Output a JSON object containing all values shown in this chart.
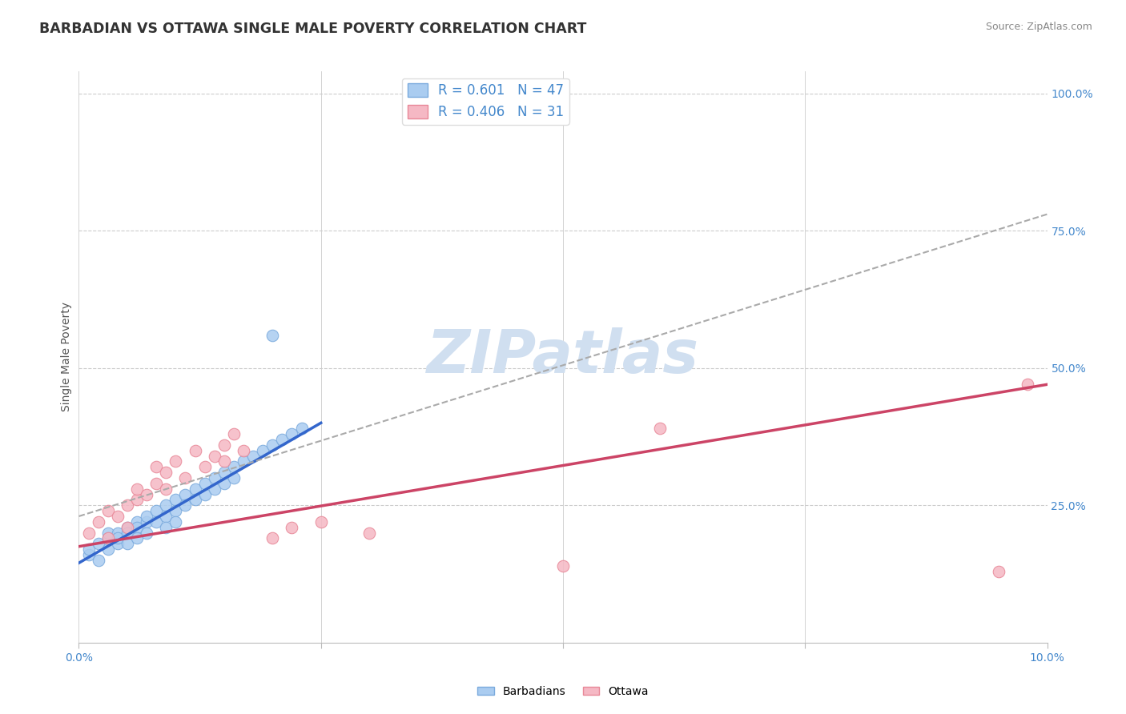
{
  "title": "BARBADIAN VS OTTAWA SINGLE MALE POVERTY CORRELATION CHART",
  "source": "Source: ZipAtlas.com",
  "ylabel": "Single Male Poverty",
  "legend_blue_r": "0.601",
  "legend_blue_n": "47",
  "legend_pink_r": "0.406",
  "legend_pink_n": "31",
  "legend_label_blue": "Barbadians",
  "legend_label_pink": "Ottawa",
  "background_color": "#ffffff",
  "blue_dot_fill": "#aaccf0",
  "blue_dot_edge": "#7aaadd",
  "pink_dot_fill": "#f5b8c4",
  "pink_dot_edge": "#e88898",
  "blue_line_color": "#3366cc",
  "pink_line_color": "#cc4466",
  "dash_line_color": "#aaaaaa",
  "axis_tick_color": "#4488cc",
  "title_color": "#333333",
  "source_color": "#888888",
  "ylabel_color": "#555555",
  "watermark_color": "#d0dff0",
  "grid_color": "#cccccc",
  "xlim": [
    0.0,
    0.1
  ],
  "ylim": [
    0.0,
    1.0
  ],
  "blue_points": [
    [
      0.001,
      0.16
    ],
    [
      0.001,
      0.17
    ],
    [
      0.002,
      0.15
    ],
    [
      0.002,
      0.18
    ],
    [
      0.003,
      0.17
    ],
    [
      0.003,
      0.19
    ],
    [
      0.003,
      0.2
    ],
    [
      0.004,
      0.18
    ],
    [
      0.004,
      0.2
    ],
    [
      0.004,
      0.19
    ],
    [
      0.005,
      0.21
    ],
    [
      0.005,
      0.2
    ],
    [
      0.005,
      0.18
    ],
    [
      0.006,
      0.22
    ],
    [
      0.006,
      0.21
    ],
    [
      0.006,
      0.19
    ],
    [
      0.007,
      0.22
    ],
    [
      0.007,
      0.23
    ],
    [
      0.007,
      0.2
    ],
    [
      0.008,
      0.24
    ],
    [
      0.008,
      0.22
    ],
    [
      0.009,
      0.25
    ],
    [
      0.009,
      0.23
    ],
    [
      0.009,
      0.21
    ],
    [
      0.01,
      0.26
    ],
    [
      0.01,
      0.24
    ],
    [
      0.01,
      0.22
    ],
    [
      0.011,
      0.27
    ],
    [
      0.011,
      0.25
    ],
    [
      0.012,
      0.28
    ],
    [
      0.012,
      0.26
    ],
    [
      0.013,
      0.29
    ],
    [
      0.013,
      0.27
    ],
    [
      0.014,
      0.3
    ],
    [
      0.014,
      0.28
    ],
    [
      0.015,
      0.31
    ],
    [
      0.015,
      0.29
    ],
    [
      0.016,
      0.32
    ],
    [
      0.016,
      0.3
    ],
    [
      0.017,
      0.33
    ],
    [
      0.018,
      0.34
    ],
    [
      0.019,
      0.35
    ],
    [
      0.02,
      0.36
    ],
    [
      0.021,
      0.37
    ],
    [
      0.022,
      0.38
    ],
    [
      0.023,
      0.39
    ],
    [
      0.02,
      0.56
    ]
  ],
  "pink_points": [
    [
      0.001,
      0.2
    ],
    [
      0.002,
      0.22
    ],
    [
      0.003,
      0.19
    ],
    [
      0.003,
      0.24
    ],
    [
      0.004,
      0.23
    ],
    [
      0.005,
      0.21
    ],
    [
      0.005,
      0.25
    ],
    [
      0.006,
      0.26
    ],
    [
      0.006,
      0.28
    ],
    [
      0.007,
      0.27
    ],
    [
      0.008,
      0.29
    ],
    [
      0.008,
      0.32
    ],
    [
      0.009,
      0.31
    ],
    [
      0.009,
      0.28
    ],
    [
      0.01,
      0.33
    ],
    [
      0.011,
      0.3
    ],
    [
      0.012,
      0.35
    ],
    [
      0.013,
      0.32
    ],
    [
      0.014,
      0.34
    ],
    [
      0.015,
      0.36
    ],
    [
      0.015,
      0.33
    ],
    [
      0.016,
      0.38
    ],
    [
      0.017,
      0.35
    ],
    [
      0.02,
      0.19
    ],
    [
      0.022,
      0.21
    ],
    [
      0.025,
      0.22
    ],
    [
      0.03,
      0.2
    ],
    [
      0.05,
      0.14
    ],
    [
      0.06,
      0.39
    ],
    [
      0.095,
      0.13
    ],
    [
      0.098,
      0.47
    ]
  ],
  "blue_trend_x": [
    0.0,
    0.025
  ],
  "blue_trend_y": [
    0.145,
    0.4
  ],
  "pink_trend_x": [
    0.0,
    0.1
  ],
  "pink_trend_y": [
    0.175,
    0.47
  ],
  "dash_trend_x": [
    0.0,
    0.1
  ],
  "dash_trend_y": [
    0.23,
    0.78
  ],
  "ytick_vals": [
    0.25,
    0.5,
    0.75,
    1.0
  ],
  "ytick_labels": [
    "25.0%",
    "50.0%",
    "75.0%",
    "100.0%"
  ],
  "xtick_vals": [
    0.0,
    0.025,
    0.05,
    0.075,
    0.1
  ],
  "xtick_labels": [
    "0.0%",
    "",
    "",
    "",
    "10.0%"
  ]
}
